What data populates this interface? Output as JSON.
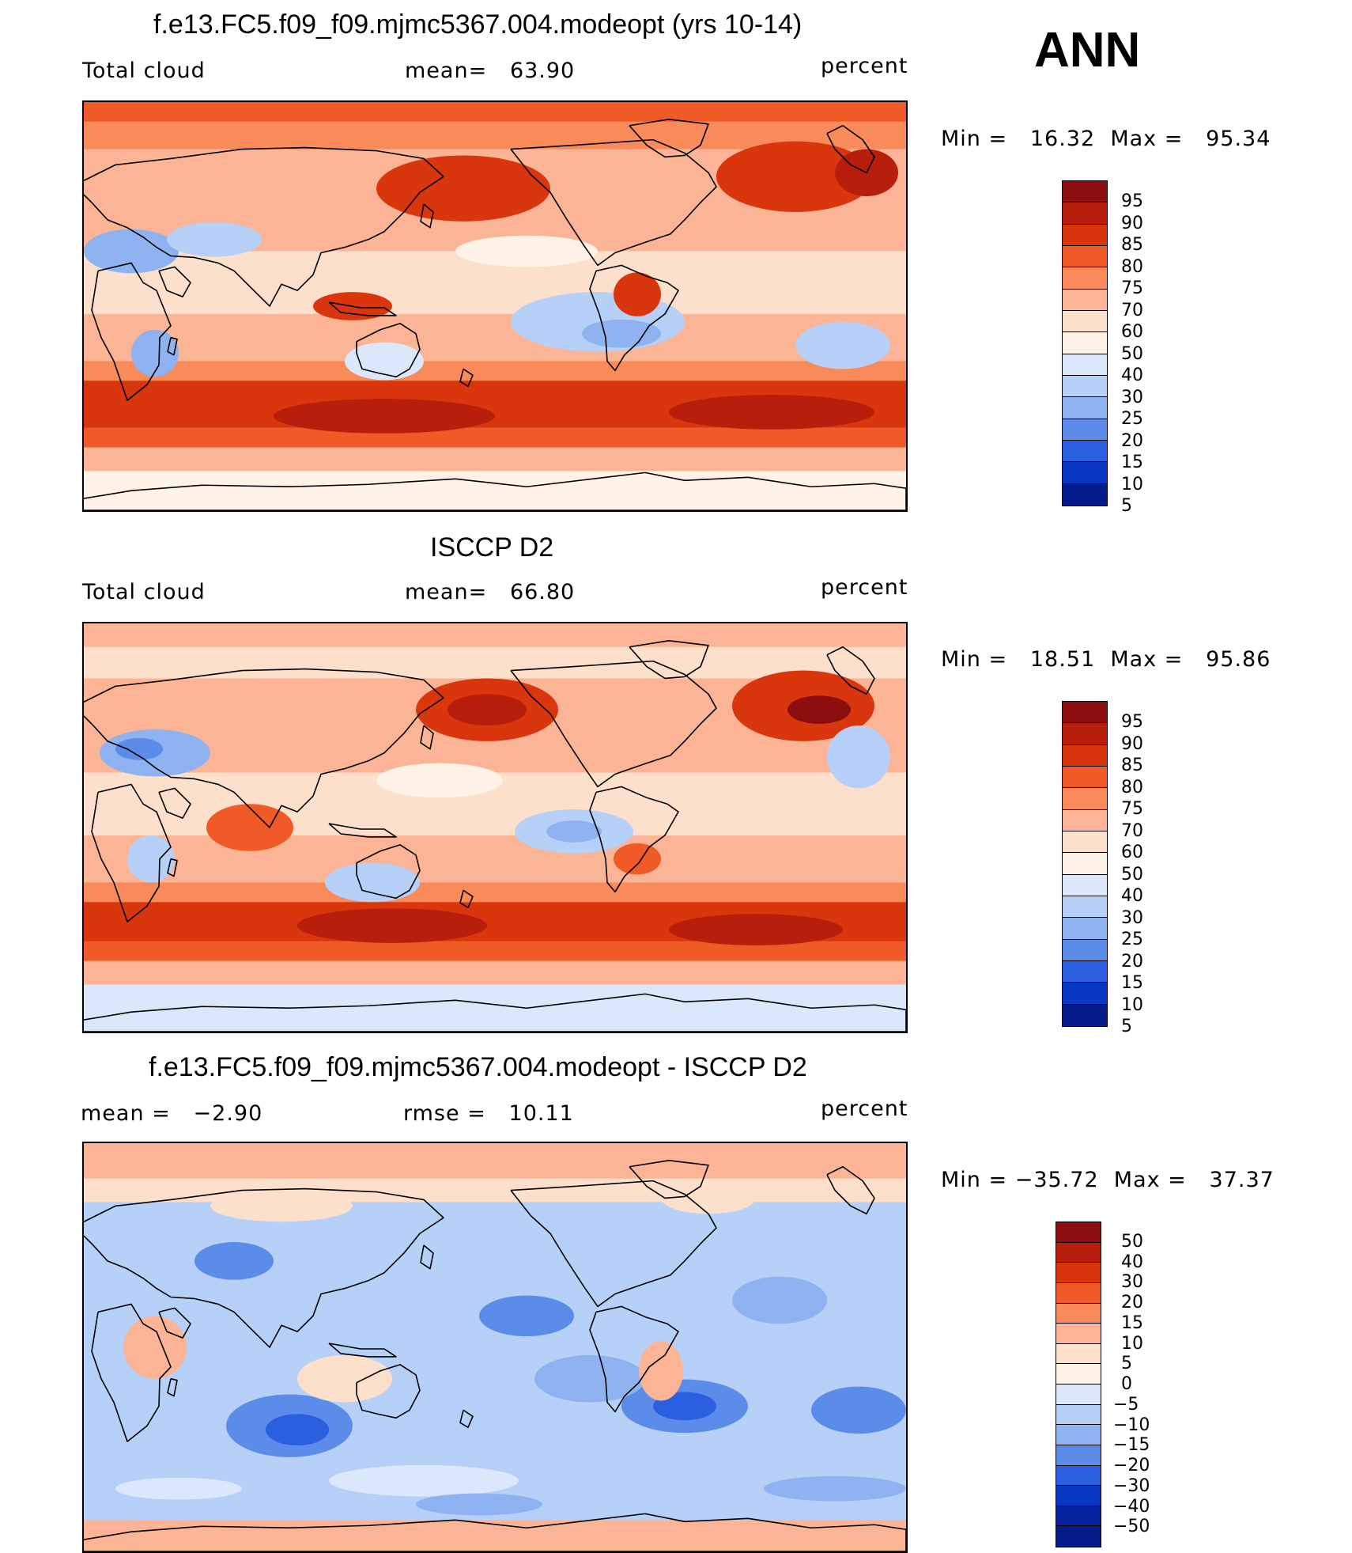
{
  "season": "ANN",
  "panels": [
    {
      "title": "f.e13.FC5.f09_f09.mjmc5367.004.modeopt (yrs 10-14)",
      "left_label": "Total cloud",
      "center_label": "mean=   63.90",
      "units": "percent",
      "min": "16.32",
      "max": "95.34",
      "minmax_text": "Min =   16.32  Max =   95.34",
      "colorbar_labels": [
        "95",
        "90",
        "85",
        "80",
        "75",
        "70",
        "60",
        "50",
        "40",
        "30",
        "25",
        "20",
        "15",
        "10",
        "5"
      ],
      "colorbar_colors": [
        "#8b0d0d",
        "#b81e0c",
        "#d9360e",
        "#ef5a26",
        "#f98a5a",
        "#fbb496",
        "#fde0cc",
        "#fff3e8",
        "#dbe8fb",
        "#b7d0f7",
        "#8fb3f1",
        "#5b8cea",
        "#2a5fe0",
        "#0a36c4",
        "#041b8a"
      ],
      "map_style": "model"
    },
    {
      "title": "ISCCP D2",
      "left_label": "Total cloud",
      "center_label": "mean=   66.80",
      "units": "percent",
      "min": "18.51",
      "max": "95.86",
      "minmax_text": "Min =   18.51  Max =   95.86",
      "colorbar_labels": [
        "95",
        "90",
        "85",
        "80",
        "75",
        "70",
        "60",
        "50",
        "40",
        "30",
        "25",
        "20",
        "15",
        "10",
        "5"
      ],
      "colorbar_colors": [
        "#8b0d0d",
        "#b81e0c",
        "#d9360e",
        "#ef5a26",
        "#f98a5a",
        "#fbb496",
        "#fde0cc",
        "#fff3e8",
        "#dbe8fb",
        "#b7d0f7",
        "#8fb3f1",
        "#5b8cea",
        "#2a5fe0",
        "#0a36c4",
        "#041b8a"
      ],
      "map_style": "obs"
    },
    {
      "title": "f.e13.FC5.f09_f09.mjmc5367.004.modeopt - ISCCP D2",
      "left_label": "mean =   −2.90",
      "center_label": "rmse =   10.11",
      "units": "percent",
      "min": "−35.72",
      "max": "37.37",
      "minmax_text": "Min = −35.72  Max =   37.37",
      "colorbar_labels": [
        "50",
        "40",
        "30",
        "20",
        "15",
        "10",
        "5",
        "0",
        "−5",
        "−10",
        "−15",
        "−20",
        "−30",
        "−40",
        "−50"
      ],
      "colorbar_colors": [
        "#8b0d0d",
        "#b81e0c",
        "#d9360e",
        "#ef5a26",
        "#f98a5a",
        "#fbb496",
        "#fde0cc",
        "#fff3e8",
        "#dbe8fb",
        "#b7d0f7",
        "#8fb3f1",
        "#5b8cea",
        "#2a5fe0",
        "#0a36c4",
        "#06229e",
        "#041b8a"
      ],
      "map_style": "diff"
    }
  ]
}
